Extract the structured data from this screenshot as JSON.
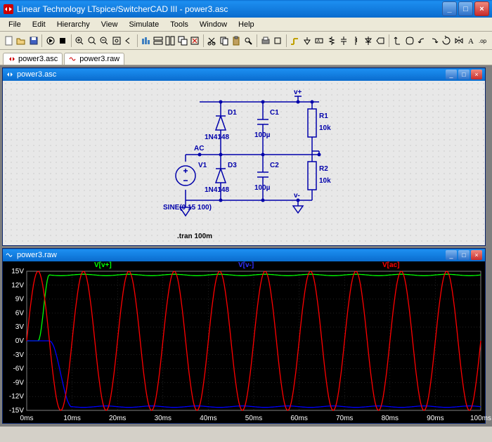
{
  "window": {
    "title": "Linear Technology LTspice/SwitcherCAD III - power3.asc"
  },
  "menu": {
    "items": [
      "File",
      "Edit",
      "Hierarchy",
      "View",
      "Simulate",
      "Tools",
      "Window",
      "Help"
    ]
  },
  "tabs": [
    {
      "icon": "schematic-icon",
      "label": "power3.asc"
    },
    {
      "icon": "waveform-icon",
      "label": "power3.raw"
    }
  ],
  "schematic": {
    "title": "power3.asc",
    "labels": {
      "D1": "D1",
      "D1_val": "1N4148",
      "D3": "D3",
      "D3_val": "1N4148",
      "C1": "C1",
      "C1_val": "100µ",
      "C2": "C2",
      "C2_val": "100µ",
      "R1": "R1",
      "R1_val": "10k",
      "R2": "R2",
      "R2_val": "10k",
      "V1": "V1",
      "AC": "AC",
      "Vplus": "v+",
      "Vminus": "v-",
      "sine": "SINE(0 15 100)",
      "tran": ".tran 100m"
    },
    "colors": {
      "wire": "#0000aa",
      "text": "#0000aa",
      "spice": "#000000",
      "bg": "#e8e8e8"
    }
  },
  "waveform": {
    "title": "power3.raw",
    "traces": [
      {
        "name": "V[v+]",
        "color": "#00ff00"
      },
      {
        "name": "V[v-]",
        "color": "#0000ff"
      },
      {
        "name": "V[ac]",
        "color": "#ff0000"
      }
    ],
    "yaxis": {
      "min": -15,
      "max": 15,
      "step": 3,
      "unit": "V",
      "ticks": [
        "15V",
        "12V",
        "9V",
        "6V",
        "3V",
        "0V",
        "-3V",
        "-6V",
        "-9V",
        "-12V",
        "-15V"
      ]
    },
    "xaxis": {
      "min": 0,
      "max": 100,
      "step": 10,
      "unit": "ms",
      "ticks": [
        "0ms",
        "10ms",
        "20ms",
        "30ms",
        "40ms",
        "50ms",
        "60ms",
        "70ms",
        "80ms",
        "90ms",
        "100ms"
      ]
    },
    "colors": {
      "bg": "#000000",
      "grid": "#404040",
      "axis": "#808080",
      "text": "#ffffff"
    }
  }
}
